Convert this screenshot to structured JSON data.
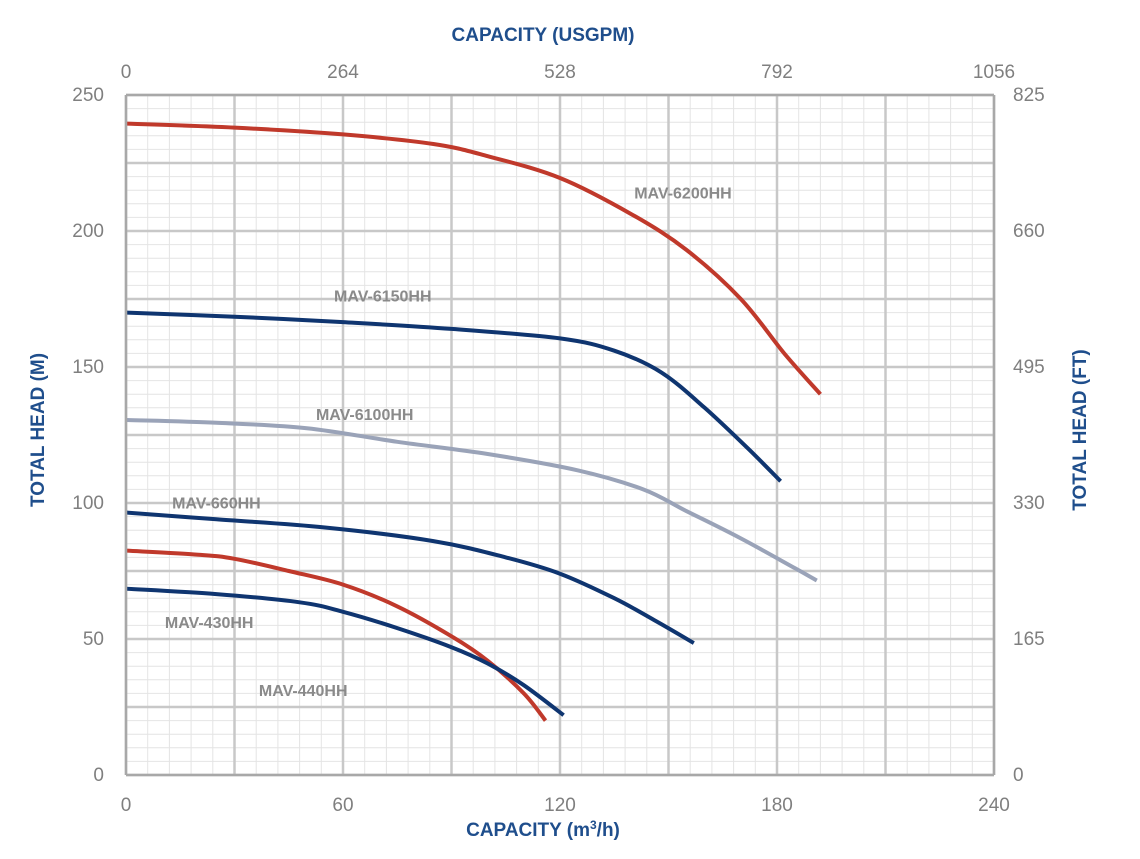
{
  "chart_data": {
    "type": "line",
    "title": "",
    "x_bottom": {
      "label": "CAPACITY (m³/h)",
      "ticks": [
        0,
        60,
        120,
        180,
        240
      ],
      "range": [
        0,
        240
      ]
    },
    "x_top": {
      "label": "CAPACITY (USGPM)",
      "ticks": [
        "0",
        "264",
        "528",
        "792",
        "1056"
      ]
    },
    "y_left": {
      "label": "TOTAL HEAD (M)",
      "ticks": [
        0,
        50,
        100,
        150,
        200,
        250
      ],
      "range": [
        0,
        250
      ]
    },
    "y_right": {
      "label": "TOTAL HEAD (FT)",
      "ticks": [
        "0",
        "165",
        "330",
        "495",
        "660",
        "825"
      ]
    },
    "grid": true,
    "colors": {
      "red": "#c0392b",
      "navy": "#0f3570",
      "gray": "#9aa3b8",
      "axis_title": "#1f4e8c",
      "label": "#8a8a8a"
    },
    "series": [
      {
        "name": "MAV-6200HH",
        "color": "#c0392b",
        "points": [
          [
            0,
            239.5
          ],
          [
            30,
            238
          ],
          [
            60,
            235.5
          ],
          [
            85,
            232
          ],
          [
            100,
            227.5
          ],
          [
            120,
            219.5
          ],
          [
            140,
            206
          ],
          [
            155,
            193
          ],
          [
            170,
            175
          ],
          [
            182,
            155
          ],
          [
            192,
            140
          ]
        ]
      },
      {
        "name": "MAV-6150HH",
        "color": "#0f3570",
        "points": [
          [
            0,
            170
          ],
          [
            30,
            168.5
          ],
          [
            60,
            166.5
          ],
          [
            90,
            164
          ],
          [
            120,
            160.5
          ],
          [
            135,
            156
          ],
          [
            148,
            148
          ],
          [
            160,
            135
          ],
          [
            172,
            120
          ],
          [
            181,
            108
          ]
        ]
      },
      {
        "name": "MAV-6100HH",
        "color": "#9aa3b8",
        "points": [
          [
            0,
            130.5
          ],
          [
            25,
            129.5
          ],
          [
            50,
            127.5
          ],
          [
            75,
            122.5
          ],
          [
            100,
            118
          ],
          [
            125,
            112
          ],
          [
            143,
            105
          ],
          [
            155,
            97
          ],
          [
            170,
            87
          ],
          [
            185,
            76
          ],
          [
            191,
            71.5
          ]
        ]
      },
      {
        "name": "MAV-660HH",
        "color": "#0f3570",
        "points": [
          [
            0,
            96.5
          ],
          [
            25,
            94
          ],
          [
            55,
            91
          ],
          [
            85,
            86
          ],
          [
            105,
            80
          ],
          [
            120,
            74
          ],
          [
            135,
            65
          ],
          [
            146,
            57
          ],
          [
            157,
            48.5
          ]
        ]
      },
      {
        "name": "MAV-440HH",
        "color": "#c0392b",
        "points": [
          [
            0,
            82.5
          ],
          [
            20,
            81
          ],
          [
            30,
            79.5
          ],
          [
            45,
            75
          ],
          [
            60,
            70
          ],
          [
            75,
            62
          ],
          [
            90,
            51
          ],
          [
            100,
            42
          ],
          [
            110,
            30
          ],
          [
            116,
            20
          ]
        ]
      },
      {
        "name": "MAV-430HH",
        "color": "#0f3570",
        "points": [
          [
            0,
            68.5
          ],
          [
            25,
            66.5
          ],
          [
            48,
            63.5
          ],
          [
            60,
            60
          ],
          [
            75,
            54
          ],
          [
            90,
            47
          ],
          [
            100,
            41
          ],
          [
            110,
            33
          ],
          [
            121,
            22
          ]
        ]
      }
    ]
  }
}
